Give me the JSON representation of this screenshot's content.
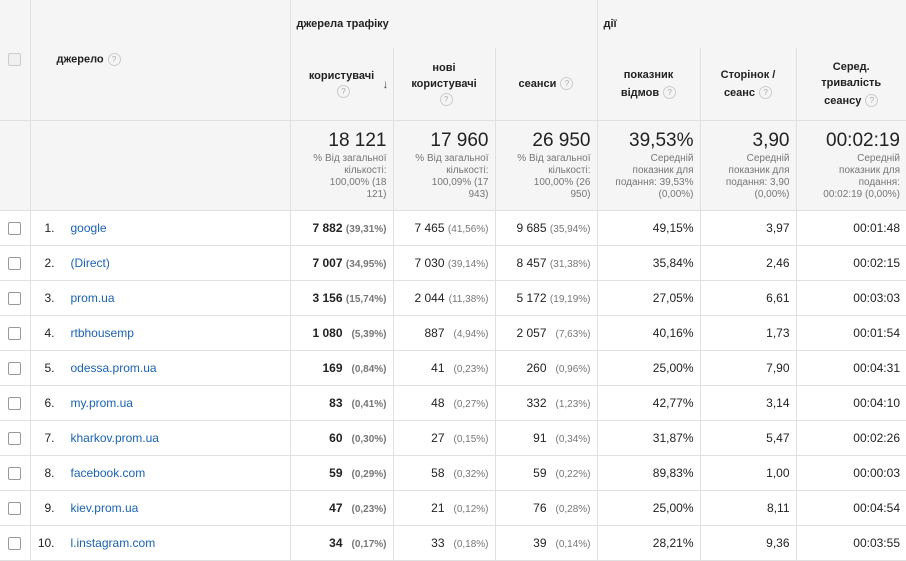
{
  "header": {
    "source_label": "джерело",
    "group_traffic": "джерела трафіку",
    "group_actions": "дії",
    "cols": [
      {
        "l1": "користувачі",
        "l2": ""
      },
      {
        "l1": "нові",
        "l2": "користувачі"
      },
      {
        "l1": "сеанси",
        "l2": ""
      },
      {
        "l1": "показник",
        "l2": "відмов"
      },
      {
        "l1": "Сторінок /",
        "l2": "сеанс"
      },
      {
        "l1": "Серед.",
        "l2": "тривалість",
        "l3": "сеансу"
      }
    ],
    "help_glyph": "?",
    "sort_glyph": "↓"
  },
  "summary": [
    {
      "big": "18 121",
      "l1": "% Від загальної",
      "l2": "кількості:",
      "l3": "100,00% (18",
      "l4": "121)"
    },
    {
      "big": "17 960",
      "l1": "% Від загальної",
      "l2": "кількості:",
      "l3": "100,09% (17",
      "l4": "943)"
    },
    {
      "big": "26 950",
      "l1": "% Від загальної",
      "l2": "кількості:",
      "l3": "100,00% (26",
      "l4": "950)"
    },
    {
      "big": "39,53%",
      "l1": "Середній",
      "l2": "показник для",
      "l3": "подання: 39,53%",
      "l4": "(0,00%)"
    },
    {
      "big": "3,90",
      "l1": "Середній",
      "l2": "показник для",
      "l3": "подання: 3,90",
      "l4": "(0,00%)"
    },
    {
      "big": "00:02:19",
      "l1": "Середній",
      "l2": "показник для",
      "l3": "подання:",
      "l4": "00:02:19 (0,00%)"
    }
  ],
  "rows": [
    {
      "idx": "1.",
      "src": "google",
      "users": "7 882",
      "users_pct": "(39,31%)",
      "new": "7 465",
      "new_pct": "(41,56%)",
      "sess": "9 685",
      "sess_pct": "(35,94%)",
      "bounce": "49,15%",
      "pages": "3,97",
      "dur": "00:01:48"
    },
    {
      "idx": "2.",
      "src": "(Direct)",
      "users": "7 007",
      "users_pct": "(34,95%)",
      "new": "7 030",
      "new_pct": "(39,14%)",
      "sess": "8 457",
      "sess_pct": "(31,38%)",
      "bounce": "35,84%",
      "pages": "2,46",
      "dur": "00:02:15"
    },
    {
      "idx": "3.",
      "src": "prom.ua",
      "users": "3 156",
      "users_pct": "(15,74%)",
      "new": "2 044",
      "new_pct": "(11,38%)",
      "sess": "5 172",
      "sess_pct": "(19,19%)",
      "bounce": "27,05%",
      "pages": "6,61",
      "dur": "00:03:03"
    },
    {
      "idx": "4.",
      "src": "rtbhousemp",
      "users": "1 080",
      "users_pct": "(5,39%)",
      "new": "887",
      "new_pct": "(4,94%)",
      "sess": "2 057",
      "sess_pct": "(7,63%)",
      "bounce": "40,16%",
      "pages": "1,73",
      "dur": "00:01:54"
    },
    {
      "idx": "5.",
      "src": "odessa.prom.ua",
      "users": "169",
      "users_pct": "(0,84%)",
      "new": "41",
      "new_pct": "(0,23%)",
      "sess": "260",
      "sess_pct": "(0,96%)",
      "bounce": "25,00%",
      "pages": "7,90",
      "dur": "00:04:31"
    },
    {
      "idx": "6.",
      "src": "my.prom.ua",
      "users": "83",
      "users_pct": "(0,41%)",
      "new": "48",
      "new_pct": "(0,27%)",
      "sess": "332",
      "sess_pct": "(1,23%)",
      "bounce": "42,77%",
      "pages": "3,14",
      "dur": "00:04:10"
    },
    {
      "idx": "7.",
      "src": "kharkov.prom.ua",
      "users": "60",
      "users_pct": "(0,30%)",
      "new": "27",
      "new_pct": "(0,15%)",
      "sess": "91",
      "sess_pct": "(0,34%)",
      "bounce": "31,87%",
      "pages": "5,47",
      "dur": "00:02:26"
    },
    {
      "idx": "8.",
      "src": "facebook.com",
      "users": "59",
      "users_pct": "(0,29%)",
      "new": "58",
      "new_pct": "(0,32%)",
      "sess": "59",
      "sess_pct": "(0,22%)",
      "bounce": "89,83%",
      "pages": "1,00",
      "dur": "00:00:03"
    },
    {
      "idx": "9.",
      "src": "kiev.prom.ua",
      "users": "47",
      "users_pct": "(0,23%)",
      "new": "21",
      "new_pct": "(0,12%)",
      "sess": "76",
      "sess_pct": "(0,28%)",
      "bounce": "25,00%",
      "pages": "8,11",
      "dur": "00:04:54"
    },
    {
      "idx": "10.",
      "src": "l.instagram.com",
      "users": "34",
      "users_pct": "(0,17%)",
      "new": "33",
      "new_pct": "(0,18%)",
      "sess": "39",
      "sess_pct": "(0,14%)",
      "bounce": "28,21%",
      "pages": "9,36",
      "dur": "00:03:55"
    }
  ]
}
